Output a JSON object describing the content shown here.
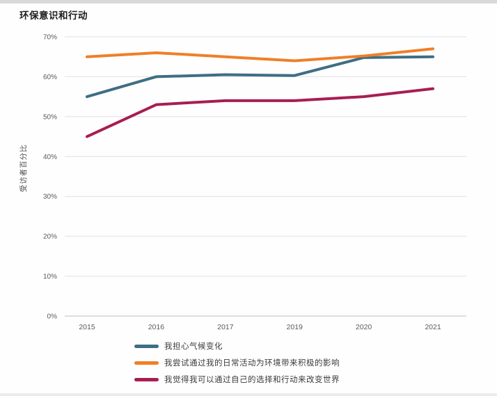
{
  "chart_data": {
    "type": "line",
    "title": "环保意识和行动",
    "xlabel": "",
    "ylabel": "受访者百分比",
    "x": [
      "2015",
      "2016",
      "2017",
      "2019",
      "2020",
      "2021"
    ],
    "ylim": [
      0,
      70
    ],
    "ytick_step": 10,
    "ytick_suffix": "%",
    "grid": true,
    "legend_position": "bottom-left",
    "series": [
      {
        "name": "我担心气候变化",
        "color": "#3e6e84",
        "values": [
          55,
          60,
          60.5,
          60.3,
          64.8,
          65
        ]
      },
      {
        "name": "我尝试通过我的日常活动为环境带来积极的影响",
        "color": "#ef7f28",
        "values": [
          65,
          66,
          65,
          64,
          65.2,
          67
        ]
      },
      {
        "name": "我觉得我可以通过自己的选择和行动来改变世界",
        "color": "#a81d52",
        "values": [
          45,
          53,
          54,
          54,
          55,
          57
        ]
      }
    ],
    "colors": {
      "grid": "#e6e6e6",
      "axis": "#c9c9c9",
      "tick_text": "#5a5a5a",
      "title_text": "#1c1c1c",
      "legend_text": "#3b3b3b"
    }
  }
}
